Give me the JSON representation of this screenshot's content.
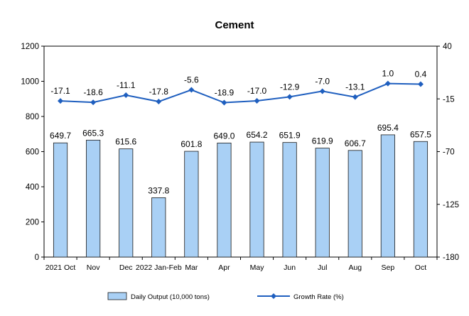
{
  "chart_data": {
    "type": "bar",
    "title": "Cement",
    "categories": [
      "2021 Oct",
      "Nov",
      "Dec",
      "2022 Jan-Feb",
      "Mar",
      "Apr",
      "May",
      "Jun",
      "Jul",
      "Aug",
      "Sep",
      "Oct"
    ],
    "series": [
      {
        "name": "Daily Output (10,000 tons)",
        "type": "bar",
        "axis": "left",
        "values": [
          649.7,
          665.3,
          615.6,
          337.8,
          601.8,
          649.0,
          654.2,
          651.9,
          619.9,
          606.7,
          695.4,
          657.5
        ],
        "labels": [
          "649.7",
          "665.3",
          "615.6",
          "337.8",
          "601.8",
          "649.0",
          "654.2",
          "651.9",
          "619.9",
          "606.7",
          "695.4",
          "657.5"
        ]
      },
      {
        "name": "Growth Rate (%)",
        "type": "line",
        "axis": "right",
        "values": [
          -17.1,
          -18.6,
          -11.1,
          -17.8,
          -5.6,
          -18.9,
          -17.0,
          -12.9,
          -7.0,
          -13.1,
          1.0,
          0.4
        ],
        "labels": [
          "-17.1",
          "-18.6",
          "-11.1",
          "-17.8",
          "-5.6",
          "-18.9",
          "-17.0",
          "-12.9",
          "-7.0",
          "-13.1",
          "1.0",
          "0.4"
        ]
      }
    ],
    "y_left": {
      "min": 0,
      "max": 1200,
      "ticks": [
        0,
        200,
        400,
        600,
        800,
        1000,
        1200
      ]
    },
    "y_right": {
      "min": -180,
      "max": 40,
      "ticks": [
        -180,
        -125,
        -70,
        -15,
        40
      ]
    },
    "grid": false,
    "legend_position": "bottom",
    "colors": {
      "bar_fill": "#a9d0f5",
      "bar_stroke": "#1a1a1a",
      "line": "#1f5fbf",
      "axis": "#000000"
    }
  }
}
